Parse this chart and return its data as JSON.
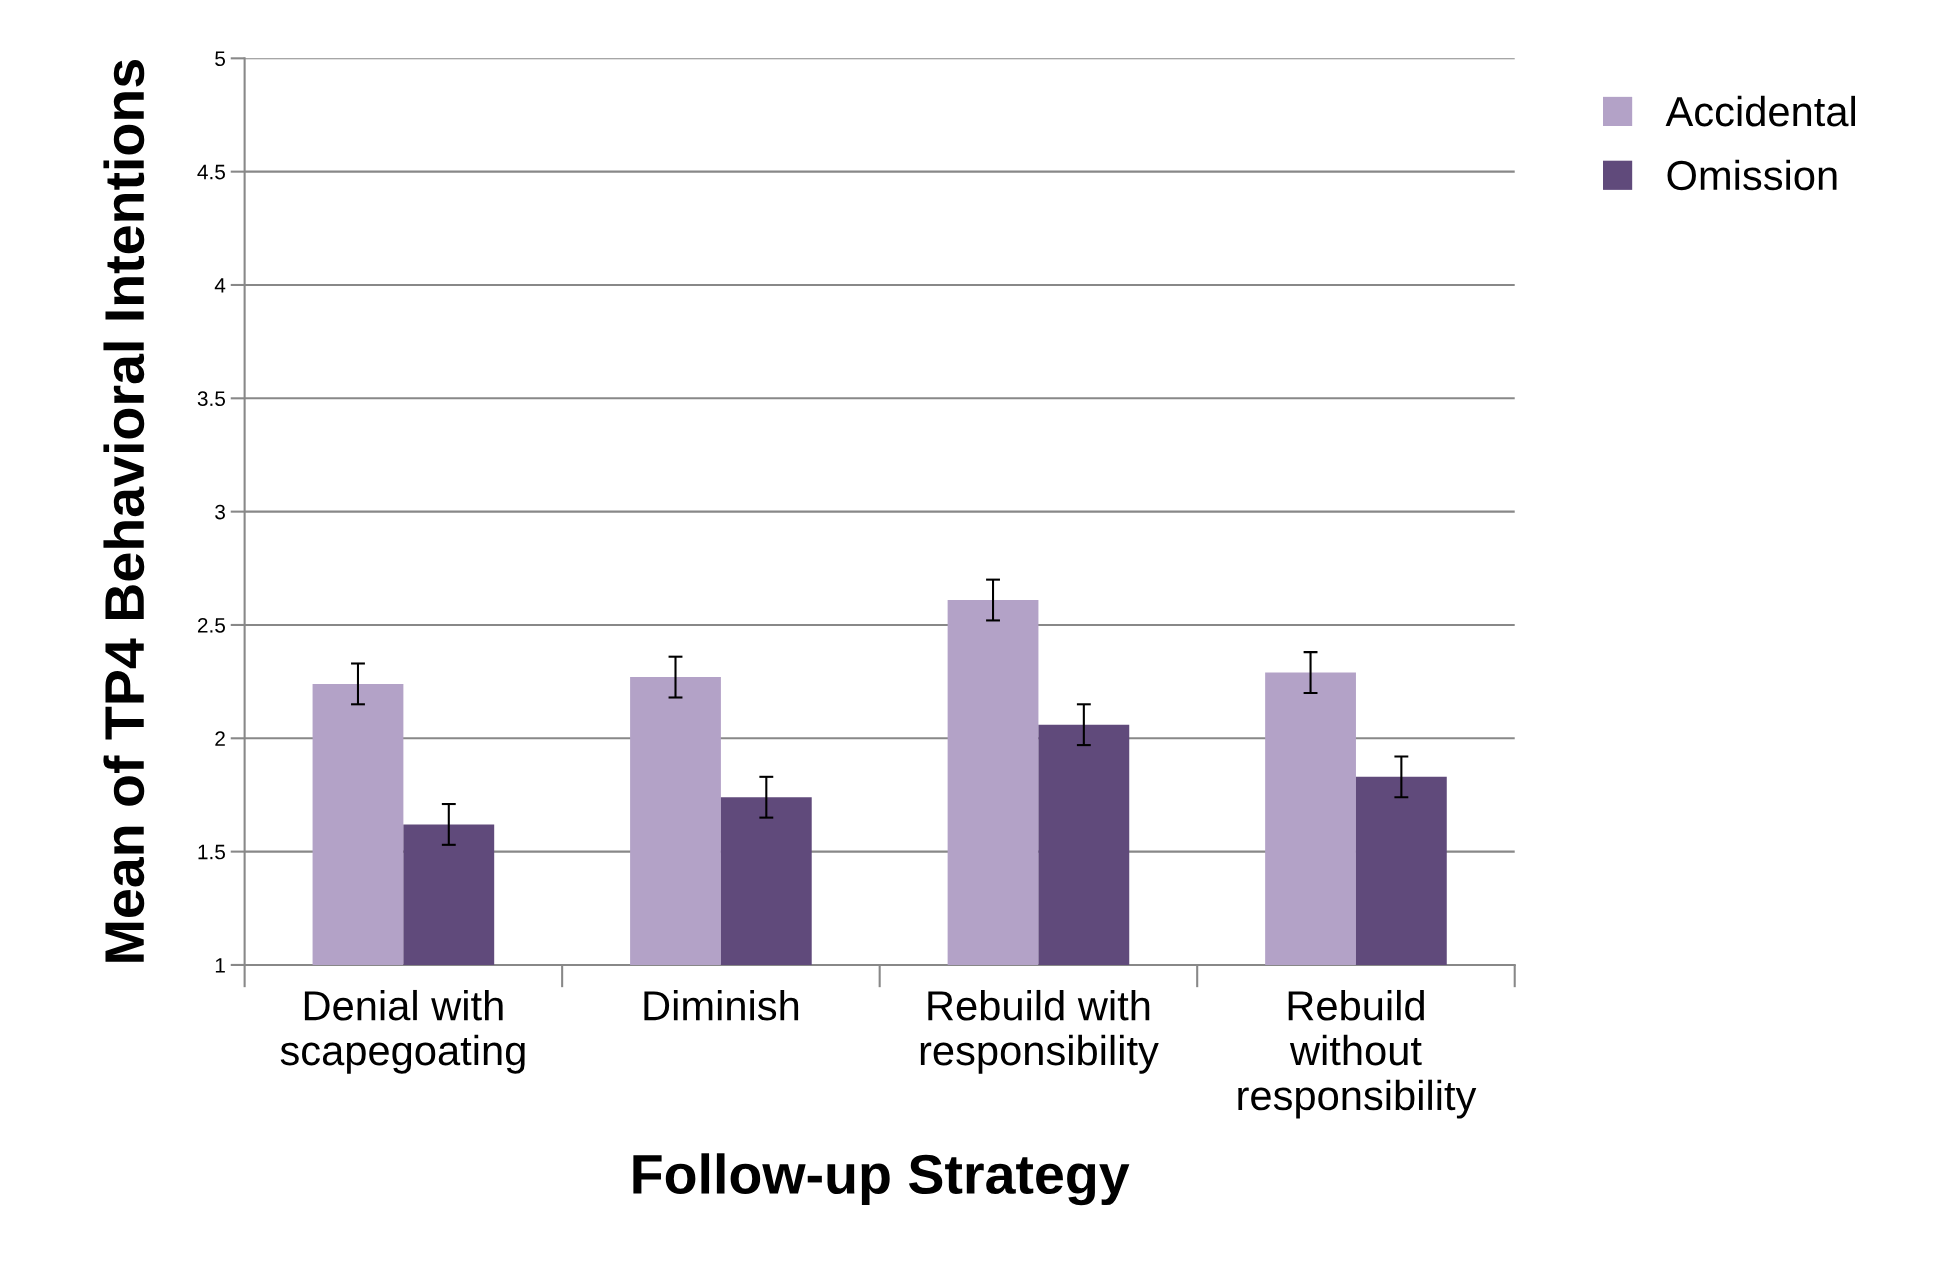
{
  "chart_data": {
    "type": "bar",
    "xlabel": "Follow-up Strategy",
    "ylabel": "Mean of TP4 Behavioral Intentions",
    "categories": [
      "Denial with\nscapegoating",
      "Diminish",
      "Rebuild with\nresponsibility",
      "Rebuild\nwithout\nresponsibility"
    ],
    "series": [
      {
        "name": "Accidental",
        "color": "#b3a2c7",
        "values": [
          2.24,
          2.27,
          2.61,
          2.29
        ],
        "errors": [
          0.09,
          0.09,
          0.09,
          0.09
        ]
      },
      {
        "name": "Omission",
        "color": "#604a7b",
        "values": [
          1.62,
          1.74,
          2.06,
          1.83
        ],
        "errors": [
          0.09,
          0.09,
          0.09,
          0.09
        ]
      }
    ],
    "ylim": [
      1,
      5
    ],
    "yticks": [
      1,
      1.5,
      2,
      2.5,
      3,
      3.5,
      4,
      4.5,
      5
    ],
    "grid": "y",
    "legend": "top right"
  }
}
